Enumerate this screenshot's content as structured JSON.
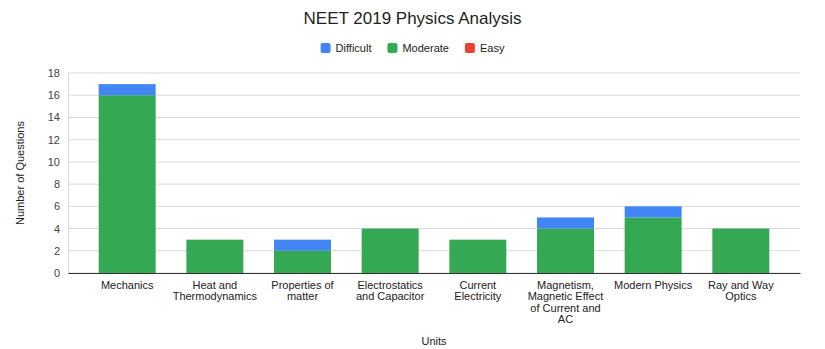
{
  "chart_data": {
    "type": "bar",
    "title": "NEET 2019 Physics Analysis",
    "x_label": "Units",
    "y_label": "Number of Questions",
    "categories": [
      "Mechanics",
      "Heat and Thermodynamics",
      "Properties of matter",
      "Electrostatics and Capacitor",
      "Current Electricity",
      "Magnetism, Magnetic Effect of Current and AC",
      "Modern Physics",
      "Ray and Way Optics"
    ],
    "series": [
      {
        "name": "Difficult",
        "color": "#4285f4",
        "values": [
          1,
          0,
          1,
          0,
          0,
          1,
          1,
          0
        ]
      },
      {
        "name": "Moderate",
        "color": "#34a853",
        "values": [
          16,
          3,
          2,
          4,
          3,
          4,
          5,
          4
        ]
      },
      {
        "name": "Easy",
        "color": "#ea4335",
        "values": [
          0,
          0,
          0,
          0,
          0,
          0,
          0,
          0
        ]
      }
    ],
    "stacked": true,
    "ylim": [
      0,
      18
    ],
    "yticks": [
      0,
      2,
      4,
      6,
      8,
      10,
      12,
      14,
      16,
      18
    ],
    "grid": true,
    "legend": "top"
  }
}
